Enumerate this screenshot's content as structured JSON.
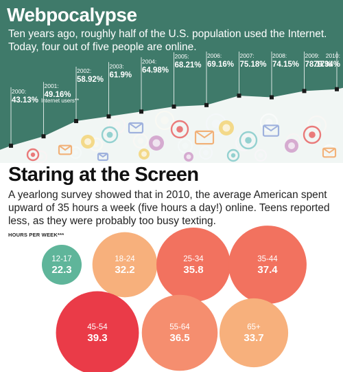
{
  "top": {
    "title": "Webpocalypse",
    "description": "Ten years ago, roughly half of the U.S. population used the Internet. Today, four out of five people are online.",
    "footnote": "Internet users**"
  },
  "bottom": {
    "title": "Staring at the Screen",
    "description": "A yearlong survey showed that in 2010, the average American spent upward of 35 hours a week (five hours a day!) online. Teens reported less, as they were probably too busy texting.",
    "hours_label": "HOURS PER WEEK***"
  },
  "colors": {
    "teal_bg": "#3f7a6a",
    "hill": "#ffffff",
    "teal_bubble": "#5fb59a",
    "peach": "#f7b07c",
    "coral": "#f2725f",
    "red": "#ea3b48",
    "salmon": "#f58e6f"
  },
  "chart_data": [
    {
      "type": "line",
      "x": [
        "2000:",
        "2001:",
        "2002:",
        "2003:",
        "2004:",
        "2005:",
        "2006:",
        "2007:",
        "2008:",
        "2009:",
        "2010:"
      ],
      "labels": [
        "43.13%",
        "49.16%",
        "58.92%",
        "61.9%",
        "64.98%",
        "68.21%",
        "69.16%",
        "75.18%",
        "74.15%",
        "78.17%",
        "79.34%"
      ],
      "values": [
        43.13,
        49.16,
        58.92,
        61.9,
        64.98,
        68.21,
        69.16,
        75.18,
        74.15,
        78.17,
        79.34
      ],
      "series": [
        {
          "name": "Internet users**",
          "values": [
            43.13,
            49.16,
            58.92,
            61.9,
            64.98,
            68.21,
            69.16,
            75.18,
            74.15,
            78.17,
            79.34
          ]
        }
      ]
    },
    {
      "type": "bubble",
      "categories": [
        "12-17",
        "18-24",
        "25-34",
        "35-44",
        "45-54",
        "55-64",
        "65+"
      ],
      "values": [
        22.3,
        32.2,
        35.8,
        37.4,
        39.3,
        36.5,
        33.7
      ],
      "colors": [
        "#5fb59a",
        "#f7b07c",
        "#f2725f",
        "#f2725f",
        "#ea3b48",
        "#f58e6f",
        "#f7b07c"
      ]
    }
  ]
}
